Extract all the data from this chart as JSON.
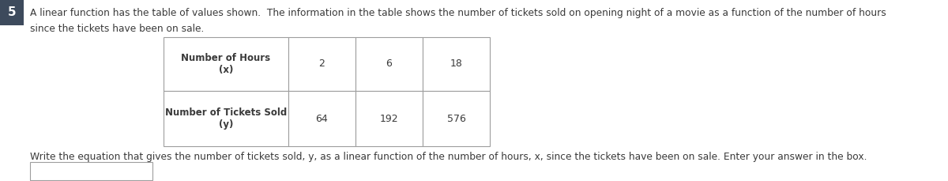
{
  "question_number": "5",
  "question_number_bg": "#3d4a5c",
  "question_number_color": "#ffffff",
  "text_line1": "A linear function has the table of values shown.  The information in the table shows the number of tickets sold on opening night of a movie as a function of the number of hours",
  "text_line2": "since the tickets have been on sale.",
  "table_header_row": [
    "Number of Hours\n(x)",
    "2",
    "6",
    "18"
  ],
  "table_data_row": [
    "Number of Tickets Sold\n(y)",
    "64",
    "192",
    "576"
  ],
  "table_border_color": "#9e9e9e",
  "table_bg_color": "#ffffff",
  "body_bg": "#ffffff",
  "text_color": "#3a3a3a",
  "bottom_text": "Write the equation that gives the number of tickets sold, y, as a linear function of the number of hours, x, since the tickets have been on sale. Enter your answer in the box.",
  "fig_width": 12.0,
  "fig_height": 2.29,
  "dpi": 100
}
